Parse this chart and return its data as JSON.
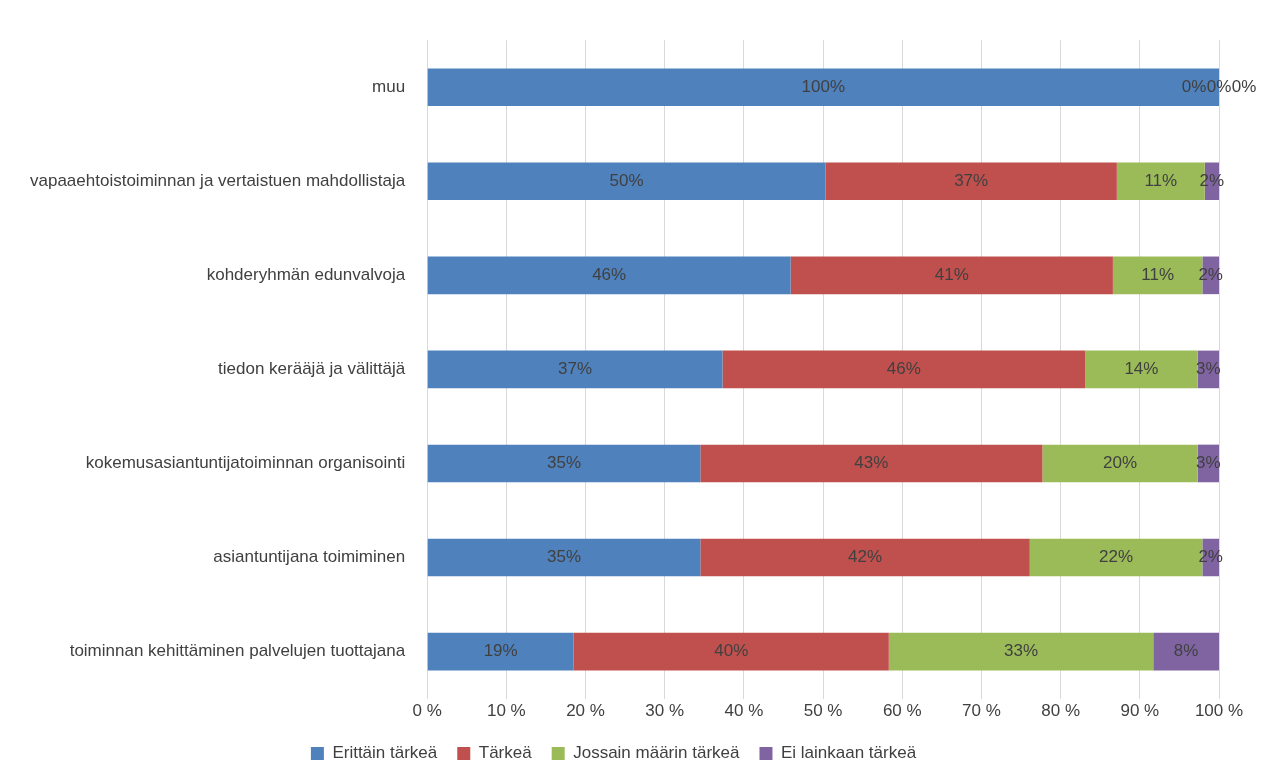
{
  "chart_data": {
    "type": "bar",
    "orientation": "horizontal",
    "stacked": true,
    "categories": [
      "muu",
      "vapaaehtoistoiminnan ja vertaistuen mahdollistaja",
      "kohderyhmän edunvalvoja",
      "tiedon kerääjä ja välittäjä",
      "kokemusasiantuntijatoiminnan organisointi",
      "asiantuntijana toimiminen",
      "toiminnan kehittäminen palvelujen tuottajana"
    ],
    "series": [
      {
        "name": "Erittäin tärkeä",
        "color": "#4f81bd",
        "values": [
          100,
          50.3,
          45.9,
          37.3,
          34.5,
          34.5,
          18.5
        ],
        "value_labels": [
          "100%",
          "50%",
          "46%",
          "37%",
          "35%",
          "35%",
          "19%"
        ]
      },
      {
        "name": "Tärkeä",
        "color": "#c0504d",
        "values": [
          0,
          36.8,
          40.7,
          45.8,
          43.2,
          41.6,
          39.8
        ],
        "value_labels": [
          "0%",
          "37%",
          "41%",
          "46%",
          "43%",
          "42%",
          "40%"
        ]
      },
      {
        "name": "Jossain määrin tärkeä",
        "color": "#9bbb59",
        "values": [
          0,
          11.1,
          11.3,
          14.2,
          19.6,
          21.8,
          33.4
        ],
        "value_labels": [
          "0%",
          "11%",
          "11%",
          "14%",
          "20%",
          "22%",
          "33%"
        ]
      },
      {
        "name": "Ei lainkaan tärkeä",
        "color": "#8064a2",
        "values": [
          0,
          1.8,
          2.1,
          2.7,
          2.7,
          2.1,
          8.3
        ],
        "value_labels": [
          "0%",
          "2%",
          "2%",
          "3%",
          "3%",
          "2%",
          "8%"
        ]
      }
    ],
    "xlim": [
      0,
      100
    ],
    "xticks": [
      {
        "value": 0,
        "label": "0 %"
      },
      {
        "value": 10,
        "label": "10 %"
      },
      {
        "value": 20,
        "label": "20 %"
      },
      {
        "value": 30,
        "label": "30 %"
      },
      {
        "value": 40,
        "label": "40 %"
      },
      {
        "value": 50,
        "label": "50 %"
      },
      {
        "value": 60,
        "label": "60 %"
      },
      {
        "value": 70,
        "label": "70 %"
      },
      {
        "value": 80,
        "label": "80 %"
      },
      {
        "value": 90,
        "label": "90 %"
      },
      {
        "value": 100,
        "label": "100 %"
      }
    ],
    "grid": "x",
    "legend": "bottom"
  }
}
